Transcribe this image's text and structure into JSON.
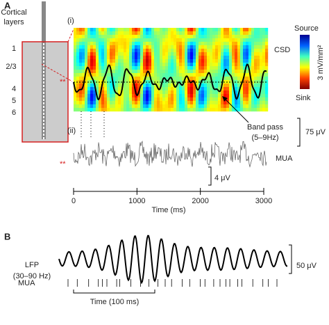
{
  "panel_a": {
    "label": "A",
    "layers_title": [
      "Cortical",
      "layers"
    ],
    "layers": [
      "1",
      "2/3",
      "4",
      "5",
      "6"
    ],
    "sub_i": "(i)",
    "sub_ii": "(ii)",
    "csd": "CSD",
    "colorbar": {
      "top": "Source",
      "bottom": "Sink",
      "unit": "3 mV/mm²"
    },
    "band_pass": [
      "Band pass",
      "(5–9Hz)"
    ],
    "lfp_scale": "75 μV",
    "mua": "MUA",
    "mua_scale": "4 μV",
    "marker_i": "**",
    "marker_ii": "**",
    "x_axis": {
      "label": "Time (ms)",
      "lim": [
        0,
        3000
      ],
      "ticks": [
        0,
        1000,
        2000,
        3000
      ]
    }
  },
  "panel_b": {
    "label": "B",
    "lfp": [
      "LFP",
      "(30–90 Hz)"
    ],
    "lfp_scale": "50 μV",
    "mua": "MUA",
    "time_bar": "Time (100 ms)"
  }
}
